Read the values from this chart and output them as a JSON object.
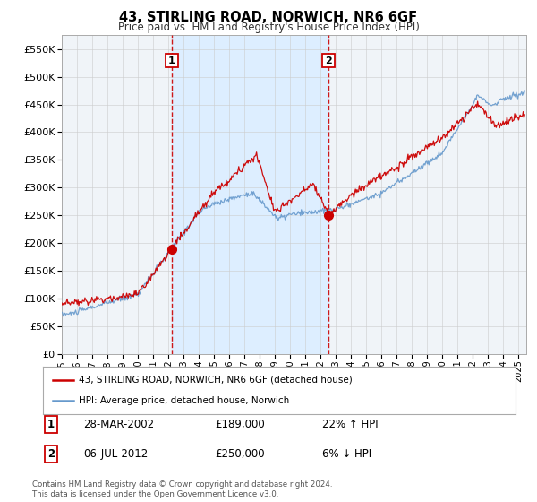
{
  "title": "43, STIRLING ROAD, NORWICH, NR6 6GF",
  "subtitle": "Price paid vs. HM Land Registry's House Price Index (HPI)",
  "background_color": "#ffffff",
  "plot_bg_color": "#f0f4f8",
  "highlight_color": "#ddeeff",
  "grid_color": "#cccccc",
  "legend_label_red": "43, STIRLING ROAD, NORWICH, NR6 6GF (detached house)",
  "legend_label_blue": "HPI: Average price, detached house, Norwich",
  "sale1_label": "1",
  "sale1_date": "28-MAR-2002",
  "sale1_price": "£189,000",
  "sale1_hpi": "22% ↑ HPI",
  "sale1_year": 2002.22,
  "sale1_value": 189000,
  "sale2_label": "2",
  "sale2_date": "06-JUL-2012",
  "sale2_price": "£250,000",
  "sale2_hpi": "6% ↓ HPI",
  "sale2_year": 2012.51,
  "sale2_value": 250000,
  "vline1_year": 2002.22,
  "vline2_year": 2012.51,
  "ylim": [
    0,
    575000
  ],
  "xlim_start": 1995.0,
  "xlim_end": 2025.5,
  "footnote": "Contains HM Land Registry data © Crown copyright and database right 2024.\nThis data is licensed under the Open Government Licence v3.0.",
  "red_color": "#cc0000",
  "blue_color": "#6699cc",
  "vline_color": "#cc0000",
  "dot_color": "#cc0000"
}
